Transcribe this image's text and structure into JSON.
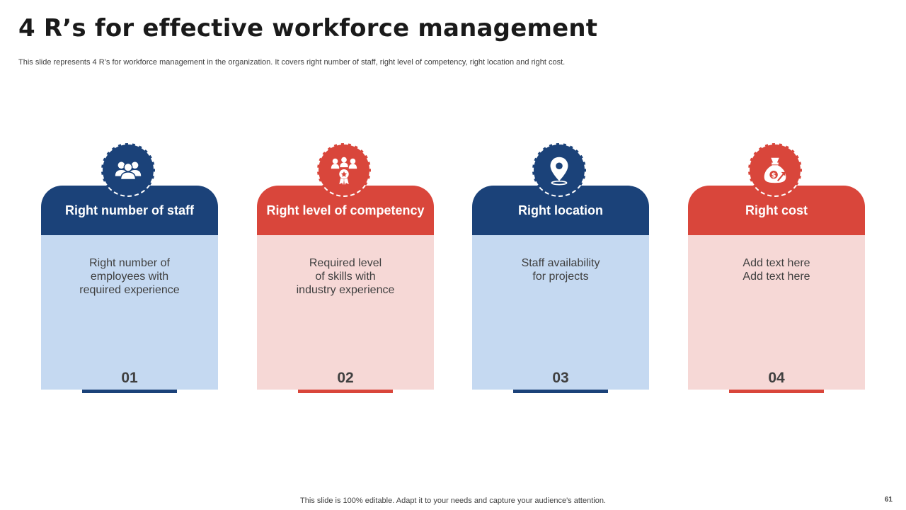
{
  "title": "4 R’s for effective workforce management",
  "subtitle": "This slide represents 4 R’s for workforce management in the organization. It covers right number of staff, right level of competency, right location and right cost.",
  "cards": [
    {
      "heading": "Right number of staff",
      "body": "Right number of\nemployees with\nrequired experience",
      "number": "01",
      "icon": "team-icon",
      "color": "#1b4279"
    },
    {
      "heading": "Right level of competency",
      "body": "Required level\nof skills with\nindustry experience",
      "number": "02",
      "icon": "competency-award-icon",
      "color": "#d9463b"
    },
    {
      "heading": "Right location",
      "body": "Staff availability\nfor projects",
      "number": "03",
      "icon": "location-pin-icon",
      "color": "#1b4279"
    },
    {
      "heading": "Right cost",
      "body": "Add text here\nAdd text here",
      "number": "04",
      "icon": "money-bag-icon",
      "color": "#d9463b"
    }
  ],
  "footer": "This slide is 100% editable. Adapt it to your needs and capture your audience's attention.",
  "page_number": "61"
}
